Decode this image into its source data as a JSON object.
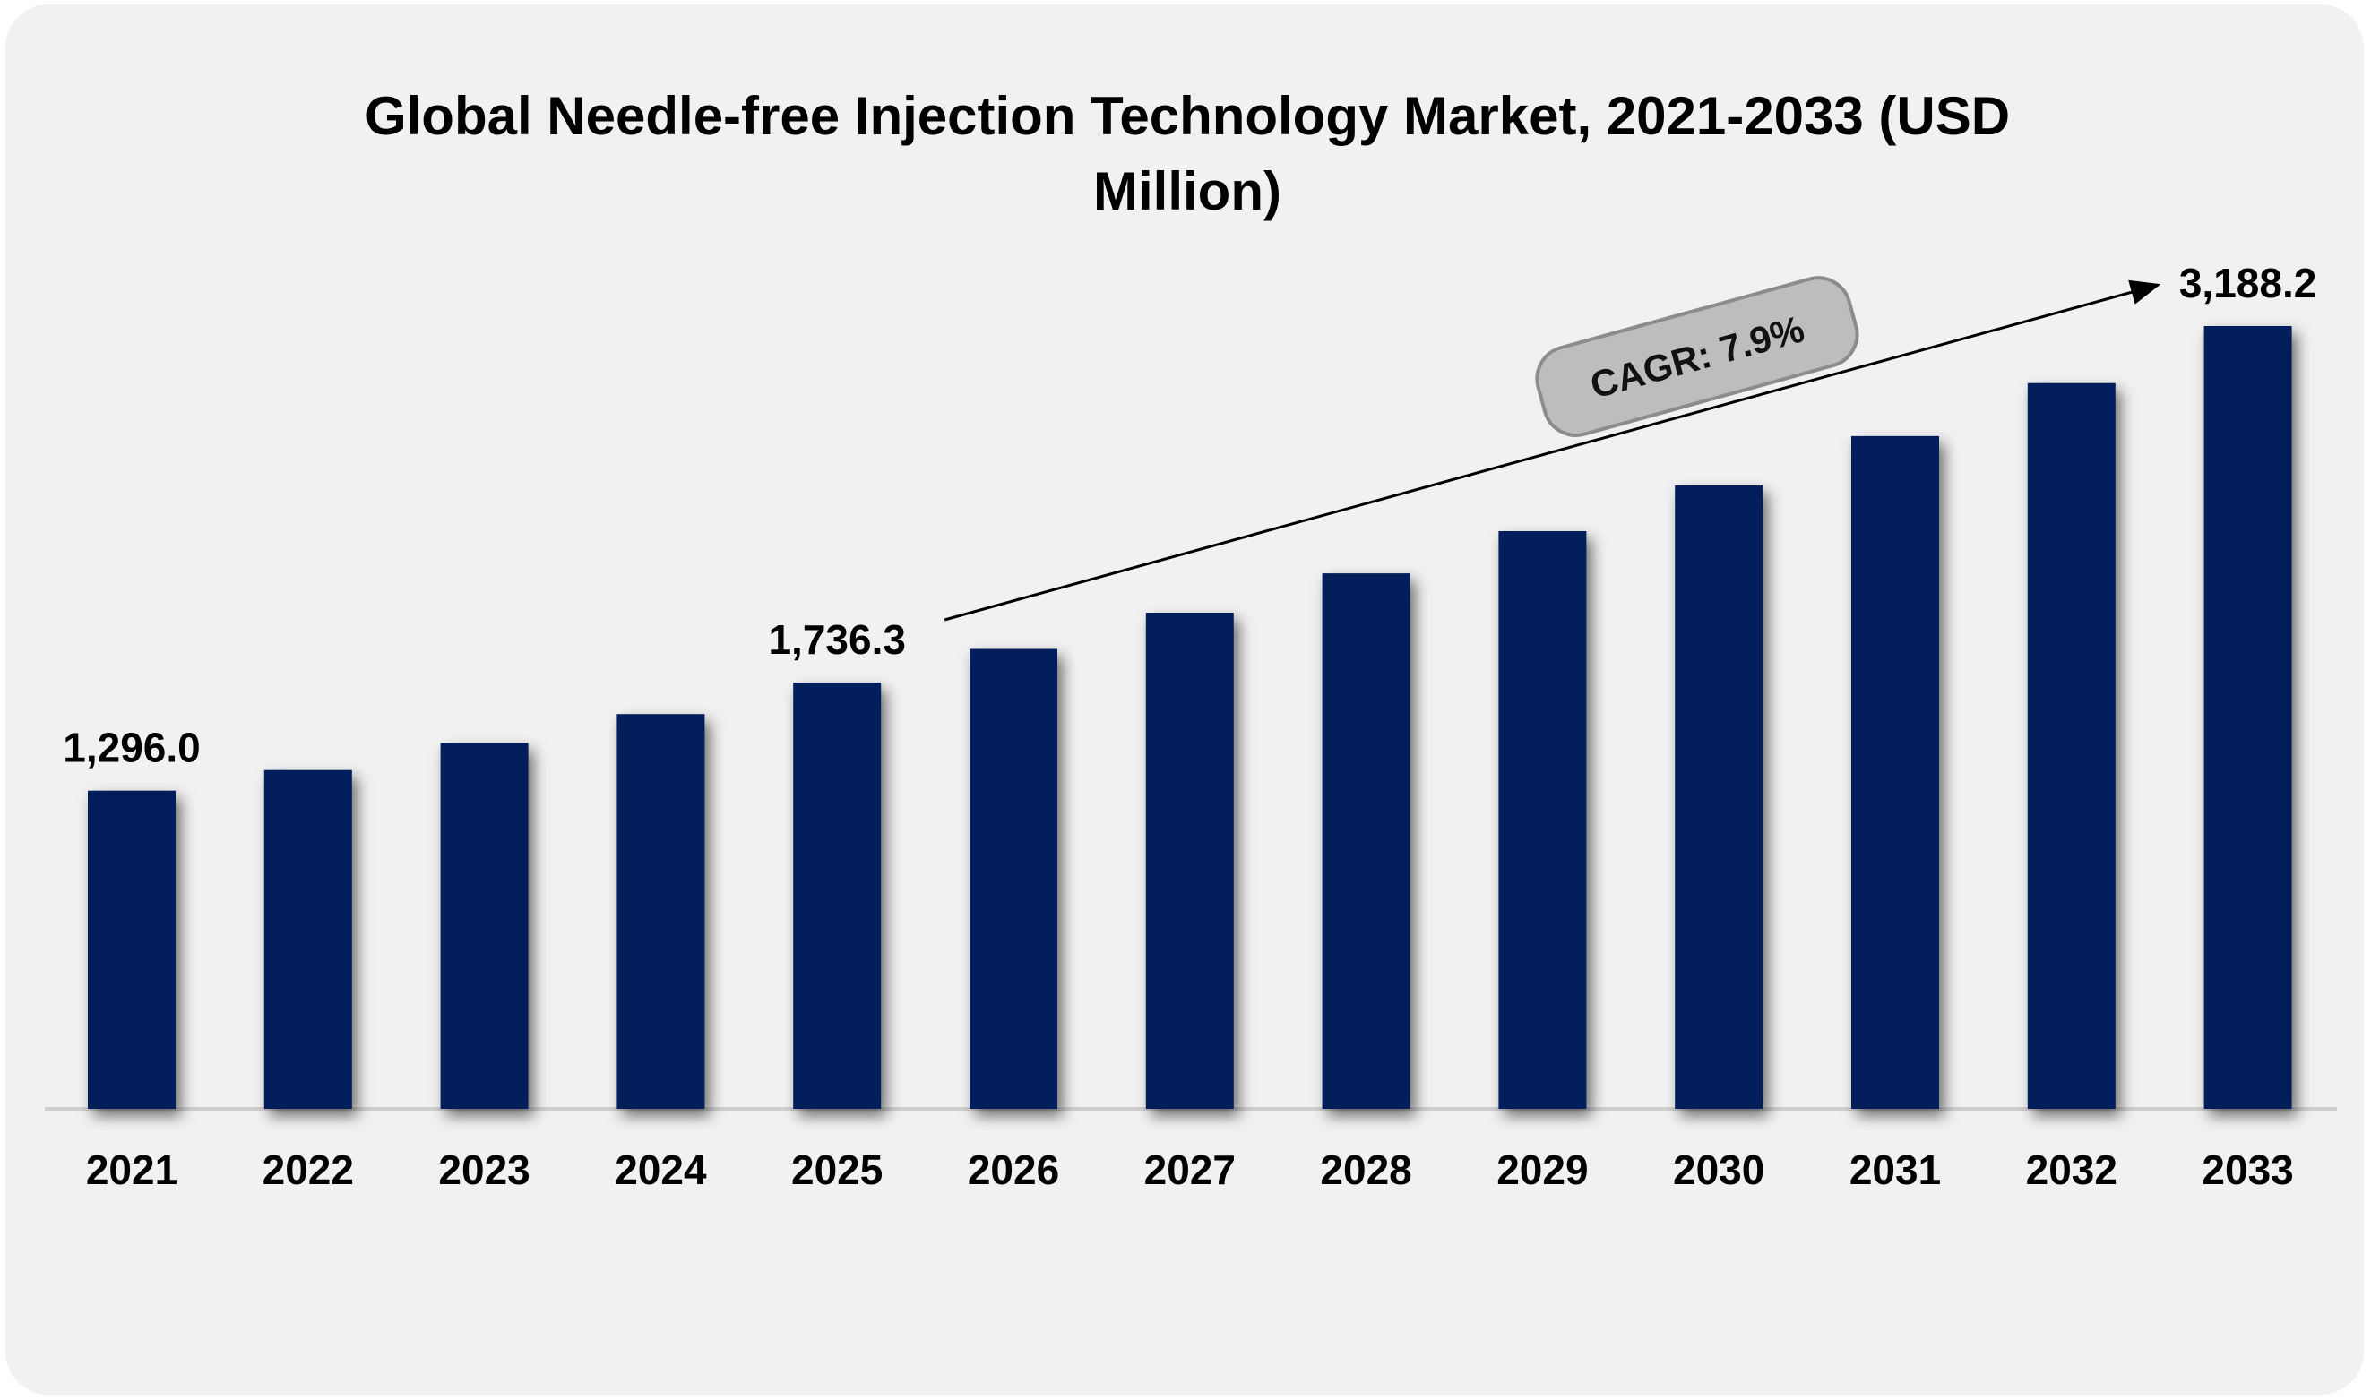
{
  "chart_data": {
    "type": "bar",
    "title": "Global Needle-free Injection Technology Market, 2021-2033 (USD Million)",
    "xlabel": "",
    "ylabel": "",
    "categories": [
      "2021",
      "2022",
      "2023",
      "2024",
      "2025",
      "2026",
      "2027",
      "2028",
      "2029",
      "2030",
      "2031",
      "2032",
      "2033"
    ],
    "values": [
      1296.0,
      1380,
      1490,
      1608,
      1736.3,
      1873,
      2021,
      2181,
      2353,
      2539,
      2740,
      2956,
      3188.2
    ],
    "ylim": [
      0,
      3188.2
    ],
    "grid": false,
    "color": "#021f5b",
    "data_labels": [
      {
        "index": 0,
        "text": "1,296.0"
      },
      {
        "index": 4,
        "text": "1,736.3"
      },
      {
        "index": 12,
        "text": "3,188.2"
      }
    ],
    "annotation": {
      "text": "CAGR: 7.9%",
      "from_index": 4,
      "to_index": 12
    }
  }
}
